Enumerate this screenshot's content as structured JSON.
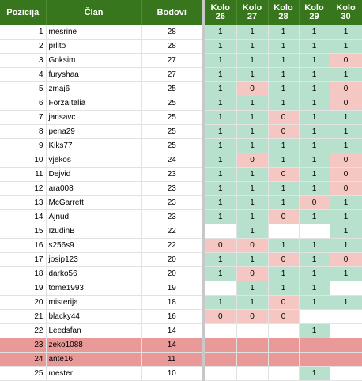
{
  "header": {
    "pozicija": "Pozicija",
    "clan": "Član",
    "bodovi": "Bodovi",
    "kola": [
      {
        "l1": "Kolo",
        "l2": "26"
      },
      {
        "l1": "Kolo",
        "l2": "27"
      },
      {
        "l1": "Kolo",
        "l2": "28"
      },
      {
        "l1": "Kolo",
        "l2": "29"
      },
      {
        "l1": "Kolo",
        "l2": "30"
      }
    ]
  },
  "rows": [
    {
      "pos": "1",
      "name": "mesrine",
      "pts": "28",
      "k": [
        "1",
        "1",
        "1",
        "1",
        "1"
      ]
    },
    {
      "pos": "2",
      "name": "prlito",
      "pts": "28",
      "k": [
        "1",
        "1",
        "1",
        "1",
        "1"
      ]
    },
    {
      "pos": "3",
      "name": "Goksim",
      "pts": "27",
      "k": [
        "1",
        "1",
        "1",
        "1",
        "0"
      ]
    },
    {
      "pos": "4",
      "name": "furyshaa",
      "pts": "27",
      "k": [
        "1",
        "1",
        "1",
        "1",
        "1"
      ]
    },
    {
      "pos": "5",
      "name": "zmaj6",
      "pts": "25",
      "k": [
        "1",
        "0",
        "1",
        "1",
        "0"
      ]
    },
    {
      "pos": "6",
      "name": "ForzaItalia",
      "pts": "25",
      "k": [
        "1",
        "1",
        "1",
        "1",
        "0"
      ]
    },
    {
      "pos": "7",
      "name": "jansavc",
      "pts": "25",
      "k": [
        "1",
        "1",
        "0",
        "1",
        "1"
      ]
    },
    {
      "pos": "8",
      "name": "pena29",
      "pts": "25",
      "k": [
        "1",
        "1",
        "0",
        "1",
        "1"
      ]
    },
    {
      "pos": "9",
      "name": "Kiks77",
      "pts": "25",
      "k": [
        "1",
        "1",
        "1",
        "1",
        "1"
      ]
    },
    {
      "pos": "10",
      "name": "vjekos",
      "pts": "24",
      "k": [
        "1",
        "0",
        "1",
        "1",
        "0"
      ]
    },
    {
      "pos": "11",
      "name": "Dejvid",
      "pts": "23",
      "k": [
        "1",
        "1",
        "0",
        "1",
        "0"
      ]
    },
    {
      "pos": "12",
      "name": "ara008",
      "pts": "23",
      "k": [
        "1",
        "1",
        "1",
        "1",
        "0"
      ]
    },
    {
      "pos": "13",
      "name": "McGarrett",
      "pts": "23",
      "k": [
        "1",
        "1",
        "1",
        "0",
        "1"
      ]
    },
    {
      "pos": "14",
      "name": "Ajnud",
      "pts": "23",
      "k": [
        "1",
        "1",
        "0",
        "1",
        "1"
      ]
    },
    {
      "pos": "15",
      "name": "IzudinB",
      "pts": "22",
      "k": [
        "",
        "1",
        "",
        "",
        "1"
      ]
    },
    {
      "pos": "16",
      "name": "s256s9",
      "pts": "22",
      "k": [
        "0",
        "0",
        "1",
        "1",
        "1"
      ]
    },
    {
      "pos": "17",
      "name": "josip123",
      "pts": "20",
      "k": [
        "1",
        "1",
        "0",
        "1",
        "0"
      ]
    },
    {
      "pos": "18",
      "name": "darko56",
      "pts": "20",
      "k": [
        "1",
        "0",
        "1",
        "1",
        "1"
      ]
    },
    {
      "pos": "19",
      "name": "tome1993",
      "pts": "19",
      "k": [
        "",
        "1",
        "1",
        "1",
        ""
      ]
    },
    {
      "pos": "20",
      "name": "misterija",
      "pts": "18",
      "k": [
        "1",
        "1",
        "0",
        "1",
        "1"
      ]
    },
    {
      "pos": "21",
      "name": "blacky44",
      "pts": "16",
      "k": [
        "0",
        "0",
        "0",
        "",
        ""
      ]
    },
    {
      "pos": "22",
      "name": "Leedsfan",
      "pts": "14",
      "k": [
        "",
        "",
        "",
        "1",
        ""
      ]
    },
    {
      "pos": "23",
      "name": "zeko1088",
      "pts": "14",
      "k": [
        "",
        "",
        "",
        "",
        ""
      ],
      "relegated": true
    },
    {
      "pos": "24",
      "name": "ante16",
      "pts": "11",
      "k": [
        "",
        "",
        "",
        "",
        ""
      ],
      "relegated": true
    },
    {
      "pos": "25",
      "name": "mester",
      "pts": "10",
      "k": [
        "",
        "",
        "",
        "1",
        ""
      ]
    }
  ],
  "colors": {
    "header_bg": "#38761d",
    "point_win": "#b7e1cd",
    "point_loss": "#f4c7c3",
    "relegation": "#ea9999"
  }
}
